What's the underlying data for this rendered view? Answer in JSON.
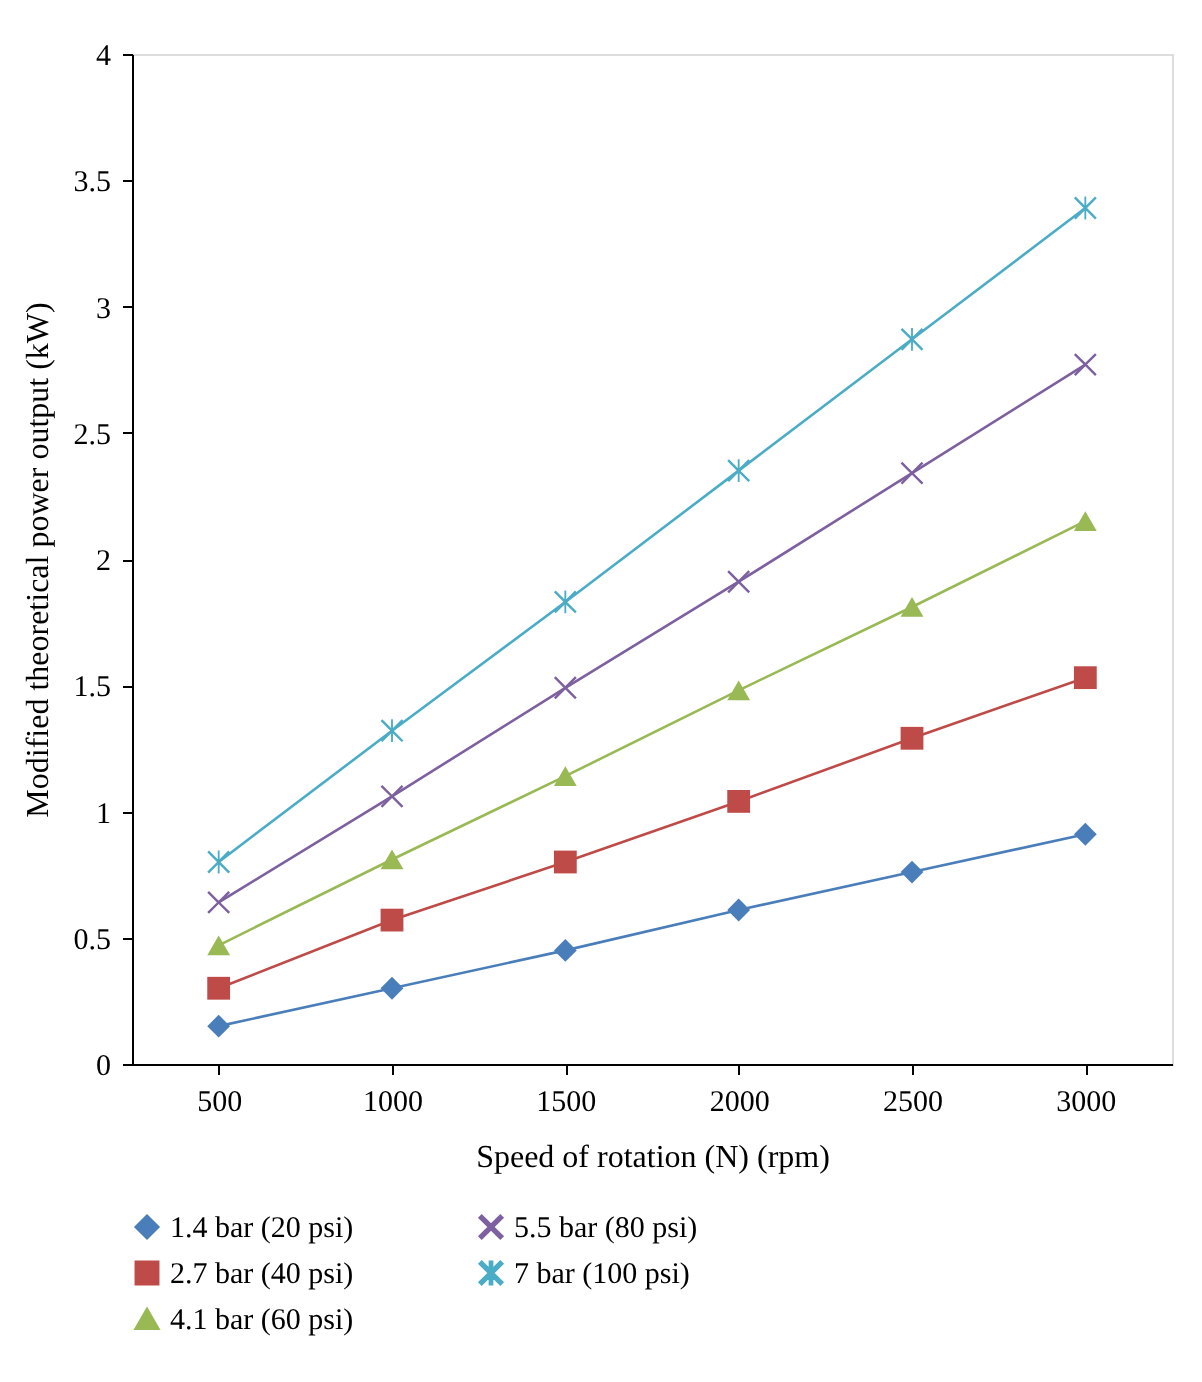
{
  "chart_data": {
    "type": "line",
    "xlabel": "Speed of rotation (N) (rpm)",
    "ylabel": "Modified theoretical power output (kW)",
    "categories": [
      "500",
      "1000",
      "1500",
      "2000",
      "2500",
      "3000"
    ],
    "ylim": [
      0,
      4
    ],
    "yticks": [
      0,
      0.5,
      1,
      1.5,
      2,
      2.5,
      3,
      3.5,
      4
    ],
    "grid": false,
    "legend": "bottom",
    "line_style": "solid",
    "series": [
      {
        "name": "1.4 bar (20 psi)",
        "color": "#4a7ebb",
        "marker": "diamond",
        "values": [
          0.15,
          0.3,
          0.45,
          0.61,
          0.76,
          0.91
        ]
      },
      {
        "name": "2.7 bar (40 psi)",
        "color": "#be4b48",
        "marker": "square",
        "values": [
          0.3,
          0.57,
          0.8,
          1.04,
          1.29,
          1.53
        ]
      },
      {
        "name": "4.1 bar (60 psi)",
        "color": "#98b954",
        "marker": "triangle",
        "values": [
          0.47,
          0.81,
          1.14,
          1.48,
          1.81,
          2.15
        ]
      },
      {
        "name": "5.5 bar (80 psi)",
        "color": "#7d60a0",
        "marker": "cross",
        "values": [
          0.64,
          1.06,
          1.49,
          1.91,
          2.34,
          2.77
        ]
      },
      {
        "name": "7 bar (100 psi)",
        "color": "#4bacc6",
        "marker": "star",
        "values": [
          0.8,
          1.32,
          1.83,
          2.35,
          2.87,
          3.39
        ]
      }
    ]
  }
}
